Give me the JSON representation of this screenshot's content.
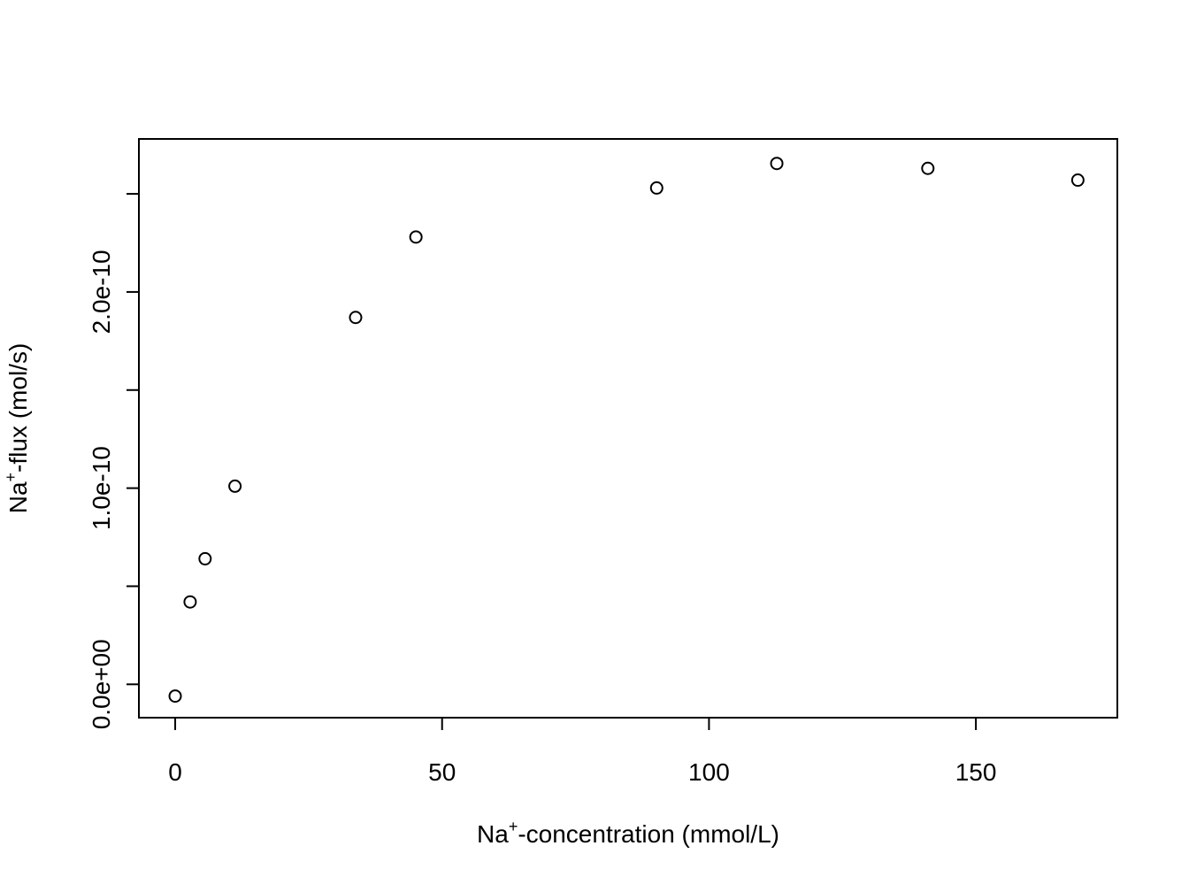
{
  "chart_data": {
    "type": "scatter",
    "title": "",
    "xlabel": {
      "prefix": "Na",
      "sup": "+",
      "suffix": "-concentration (mmol/L)"
    },
    "ylabel": {
      "prefix": "Na",
      "sup": "+",
      "suffix": "-flux (mol/s)"
    },
    "xlim": [
      -6.8,
      176.5
    ],
    "ylim": [
      -1.7e-11,
      2.78e-10
    ],
    "x_ticks": [
      0,
      50,
      100,
      150
    ],
    "x_tick_labels": [
      "0",
      "50",
      "100",
      "150"
    ],
    "y_ticks": [
      0,
      5e-11,
      1e-10,
      1.5e-10,
      2e-10,
      2.5e-10
    ],
    "y_tick_labels": [
      "0.0e+00",
      "",
      "1.0e-10",
      "",
      "2.0e-10",
      ""
    ],
    "marker": "open-circle",
    "grid": false,
    "legend": "none",
    "points": [
      {
        "x": 0,
        "y": -6e-12
      },
      {
        "x": 2.8,
        "y": 4.2e-11
      },
      {
        "x": 5.6,
        "y": 6.4e-11
      },
      {
        "x": 11.2,
        "y": 1.01e-10
      },
      {
        "x": 33.8,
        "y": 1.87e-10
      },
      {
        "x": 45.1,
        "y": 2.28e-10
      },
      {
        "x": 90.2,
        "y": 2.53e-10
      },
      {
        "x": 112.7,
        "y": 2.655e-10
      },
      {
        "x": 141.0,
        "y": 2.63e-10
      },
      {
        "x": 169.1,
        "y": 2.57e-10
      }
    ]
  }
}
